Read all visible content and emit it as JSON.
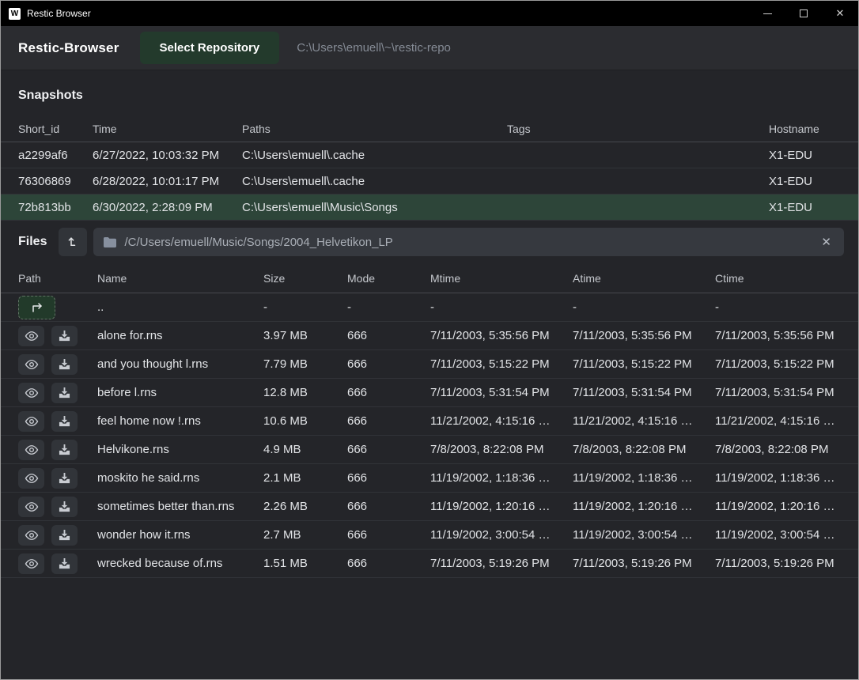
{
  "titlebar": {
    "app_icon_letter": "W",
    "title": "Restic Browser",
    "close_glyph": "✕"
  },
  "header": {
    "app_name": "Restic-Browser",
    "select_repository_label": "Select Repository",
    "repository_path": "C:\\Users\\emuell\\~\\restic-repo"
  },
  "snapshots": {
    "title": "Snapshots",
    "columns": [
      "Short_id",
      "Time",
      "Paths",
      "Tags",
      "Hostname"
    ],
    "rows": [
      {
        "short_id": "a2299af6",
        "time": "6/27/2022, 10:03:32 PM",
        "paths": "C:\\Users\\emuell\\.cache",
        "tags": "",
        "hostname": "X1-EDU",
        "selected": false
      },
      {
        "short_id": "76306869",
        "time": "6/28/2022, 10:01:17 PM",
        "paths": "C:\\Users\\emuell\\.cache",
        "tags": "",
        "hostname": "X1-EDU",
        "selected": false
      },
      {
        "short_id": "72b813bb",
        "time": "6/30/2022, 2:28:09 PM",
        "paths": "C:\\Users\\emuell\\Music\\Songs",
        "tags": "",
        "hostname": "X1-EDU",
        "selected": true
      }
    ]
  },
  "files": {
    "title": "Files",
    "path_bar_value": "/C/Users/emuell/Music/Songs/2004_Helvetikon_LP",
    "clear_glyph": "✕",
    "columns": [
      "Path",
      "Name",
      "Size",
      "Mode",
      "Mtime",
      "Atime",
      "Ctime"
    ],
    "rows": [
      {
        "type": "parent",
        "name": "..",
        "size": "-",
        "mode": "-",
        "mtime": "-",
        "atime": "-",
        "ctime": "-"
      },
      {
        "type": "file",
        "name": "alone for.rns",
        "size": "3.97 MB",
        "mode": "666",
        "mtime": "7/11/2003, 5:35:56 PM",
        "atime": "7/11/2003, 5:35:56 PM",
        "ctime": "7/11/2003, 5:35:56 PM"
      },
      {
        "type": "file",
        "name": "and you thought l.rns",
        "size": "7.79 MB",
        "mode": "666",
        "mtime": "7/11/2003, 5:15:22 PM",
        "atime": "7/11/2003, 5:15:22 PM",
        "ctime": "7/11/2003, 5:15:22 PM"
      },
      {
        "type": "file",
        "name": "before l.rns",
        "size": "12.8 MB",
        "mode": "666",
        "mtime": "7/11/2003, 5:31:54 PM",
        "atime": "7/11/2003, 5:31:54 PM",
        "ctime": "7/11/2003, 5:31:54 PM"
      },
      {
        "type": "file",
        "name": "feel home now !.rns",
        "size": "10.6 MB",
        "mode": "666",
        "mtime": "11/21/2002, 4:15:16 …",
        "atime": "11/21/2002, 4:15:16 …",
        "ctime": "11/21/2002, 4:15:16 …"
      },
      {
        "type": "file",
        "name": "Helvikone.rns",
        "size": "4.9 MB",
        "mode": "666",
        "mtime": "7/8/2003, 8:22:08 PM",
        "atime": "7/8/2003, 8:22:08 PM",
        "ctime": "7/8/2003, 8:22:08 PM"
      },
      {
        "type": "file",
        "name": "moskito he said.rns",
        "size": "2.1 MB",
        "mode": "666",
        "mtime": "11/19/2002, 1:18:36 …",
        "atime": "11/19/2002, 1:18:36 …",
        "ctime": "11/19/2002, 1:18:36 …"
      },
      {
        "type": "file",
        "name": "sometimes better than.rns",
        "size": "2.26 MB",
        "mode": "666",
        "mtime": "11/19/2002, 1:20:16 …",
        "atime": "11/19/2002, 1:20:16 …",
        "ctime": "11/19/2002, 1:20:16 …"
      },
      {
        "type": "file",
        "name": "wonder how it.rns",
        "size": "2.7 MB",
        "mode": "666",
        "mtime": "11/19/2002, 3:00:54 …",
        "atime": "11/19/2002, 3:00:54 …",
        "ctime": "11/19/2002, 3:00:54 …"
      },
      {
        "type": "file",
        "name": "wrecked because of.rns",
        "size": "1.51 MB",
        "mode": "666",
        "mtime": "7/11/2003, 5:19:26 PM",
        "atime": "7/11/2003, 5:19:26 PM",
        "ctime": "7/11/2003, 5:19:26 PM"
      }
    ]
  },
  "icons": {
    "wails-logo": "W glyph on white square",
    "minimize-icon": "horizontal bar",
    "maximize-icon": "square outline",
    "close-icon": "✕",
    "folder-icon": "filled folder",
    "clear-icon": "✕",
    "up-directory-icon": "arrow up with base foot",
    "enter-parent-icon": "corner arrow right",
    "view-file-icon": "eye",
    "download-file-icon": "arrow into tray"
  },
  "colors": {
    "titlebar_bg": "#000000",
    "window_bg": "#242529",
    "header_bg": "#2b2c30",
    "accent_green_button": "#233a2c",
    "selected_row_bg": "#2d4539",
    "control_bg": "#313439",
    "pathbar_bg": "#36393f",
    "text_primary": "#e2e4e7",
    "text_muted": "#858b95"
  }
}
